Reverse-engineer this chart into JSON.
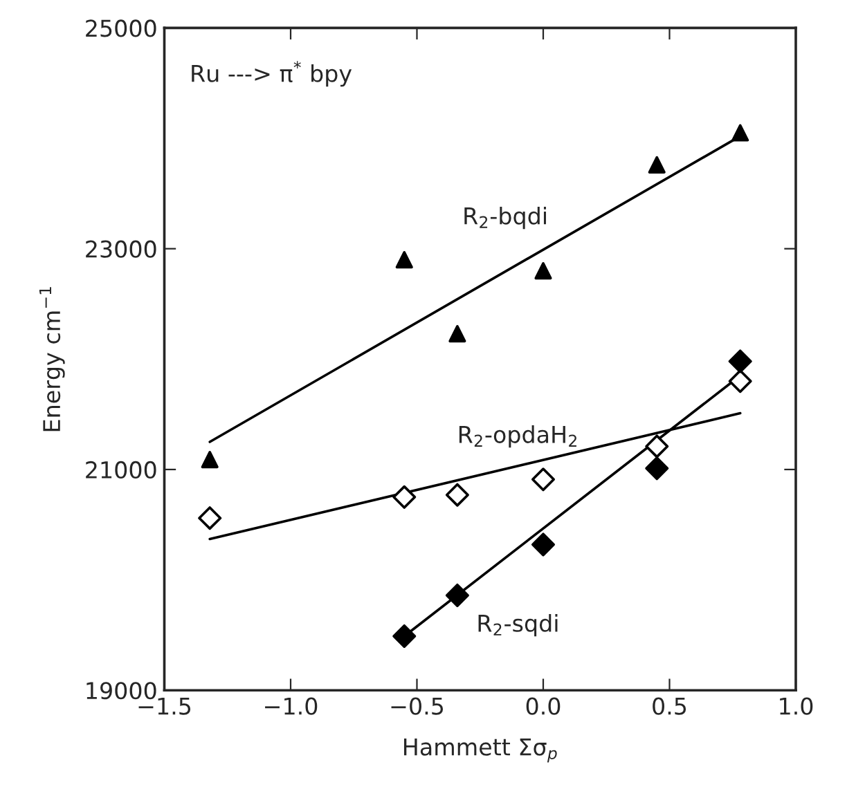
{
  "chart_data": {
    "type": "scatter",
    "xlabel": "Hammett Σσ$_{p}$",
    "ylabel": "Energy cm$^{−1}$",
    "xlim": [
      -1.5,
      1.0
    ],
    "ylim": [
      19000,
      25000
    ],
    "xticks": [
      {
        "value": -1.5,
        "label": "−1.5"
      },
      {
        "value": -1.0,
        "label": "−1.0"
      },
      {
        "value": -0.5,
        "label": "−0.5"
      },
      {
        "value": 0.0,
        "label": "0.0"
      },
      {
        "value": 0.5,
        "label": "0.5"
      },
      {
        "value": 1.0,
        "label": "1.0"
      }
    ],
    "yticks": [
      19000,
      21000,
      23000,
      25000
    ],
    "grid": false,
    "series": [
      {
        "marker": "triangle",
        "color": "#000000",
        "x": [
          -1.32,
          -0.55,
          -0.34,
          0.0,
          0.45,
          0.78
        ],
        "values": [
          21090,
          22900,
          22230,
          22800,
          23760,
          24050
        ]
      },
      {
        "marker": "diamond",
        "color": "#ffffff",
        "x": [
          -1.32,
          -0.55,
          -0.34,
          0.0,
          0.45,
          0.78
        ],
        "values": [
          20560,
          20750,
          20770,
          20910,
          21210,
          21800
        ]
      },
      {
        "marker": "diamond",
        "color": "#000000",
        "x": [
          -0.55,
          -0.34,
          0.0,
          0.45,
          0.78
        ],
        "values": [
          19490,
          19860,
          20320,
          21010,
          21980
        ]
      },
      {
        "type": "line",
        "line_style": "solid",
        "color": "#000000",
        "x": [
          -1.32,
          0.78
        ],
        "values": [
          21250,
          24020
        ]
      },
      {
        "type": "line",
        "line_style": "solid",
        "color": "#000000",
        "x": [
          -1.32,
          0.78
        ],
        "values": [
          20370,
          21510
        ]
      },
      {
        "type": "line",
        "line_style": "solid",
        "color": "#000000",
        "x": [
          -0.55,
          0.78
        ],
        "values": [
          19490,
          21850
        ]
      }
    ],
    "annotations": [
      "Ru ---> π$^{*}$ bpy",
      "R$_{2}$-bqdi",
      "R$_{2}$-opdaH$_{2}$",
      "R$_{2}$-sqdi"
    ]
  }
}
